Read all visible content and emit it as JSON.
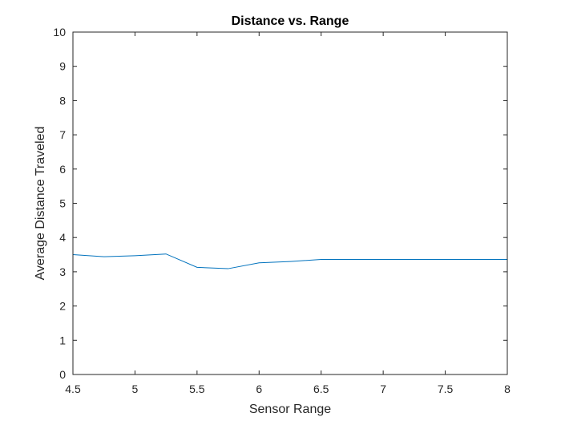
{
  "chart_data": {
    "type": "line",
    "title": "Distance vs. Range",
    "xlabel": "Sensor Range",
    "ylabel": "Average Distance Traveled",
    "xlim": [
      4.5,
      8
    ],
    "ylim": [
      0,
      10
    ],
    "xticks": [
      "4.5",
      "5",
      "5.5",
      "6",
      "6.5",
      "7",
      "7.5",
      "8"
    ],
    "yticks": [
      "0",
      "1",
      "2",
      "3",
      "4",
      "5",
      "6",
      "7",
      "8",
      "9",
      "10"
    ],
    "grid": false,
    "legend": "none",
    "series": [
      {
        "color": "#0072BD",
        "x": [
          4.5,
          4.75,
          5.0,
          5.25,
          5.5,
          5.75,
          6.0,
          6.25,
          6.5,
          6.75,
          7.0,
          7.25,
          7.5,
          7.75,
          8.0
        ],
        "y": [
          3.5,
          3.44,
          3.47,
          3.52,
          3.13,
          3.09,
          3.26,
          3.3,
          3.36,
          3.36,
          3.36,
          3.36,
          3.36,
          3.36,
          3.36
        ]
      }
    ]
  }
}
